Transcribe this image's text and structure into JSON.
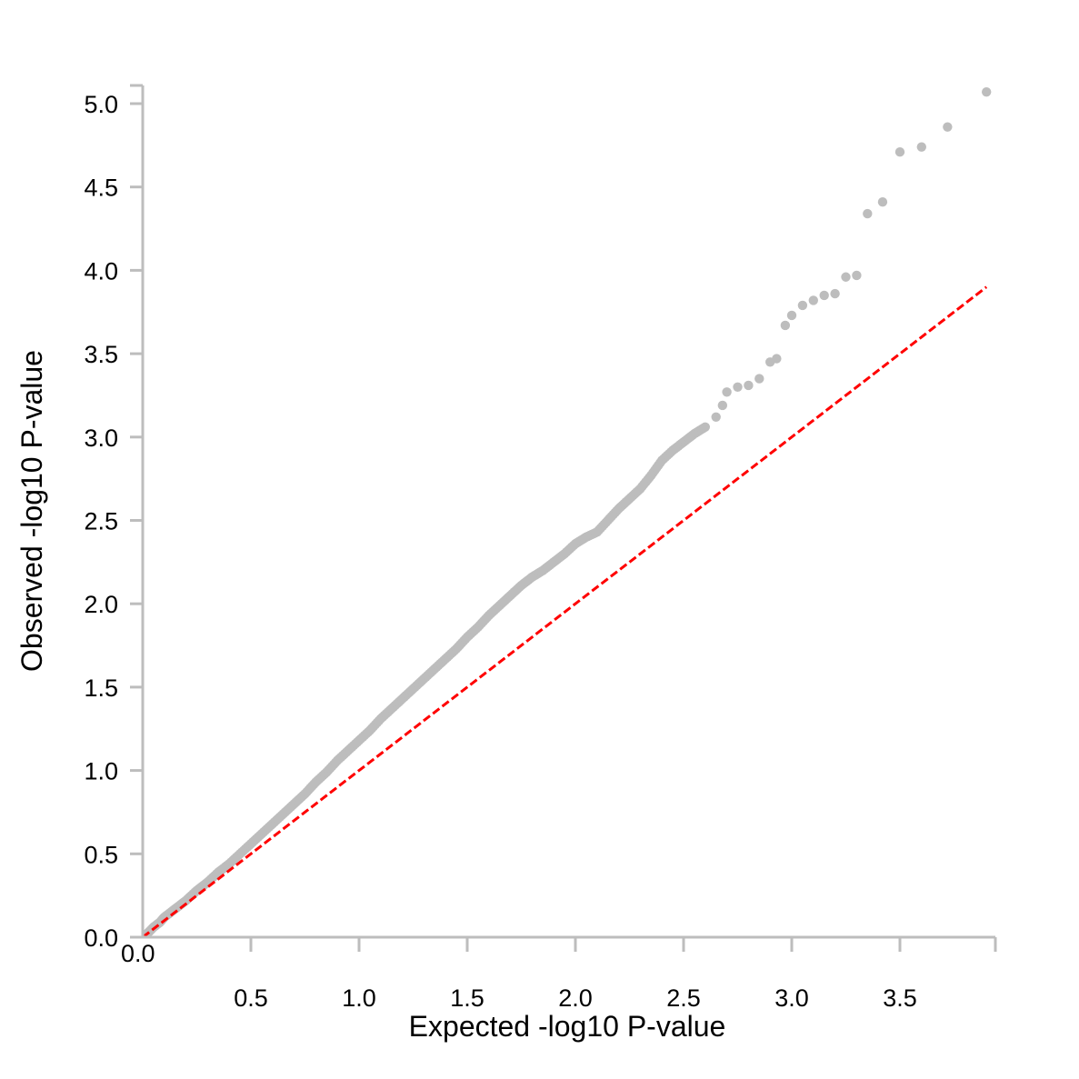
{
  "chart_data": {
    "type": "scatter",
    "xlabel": "Expected -log10 P-value",
    "ylabel": "Observed -log10 P-value",
    "xlim": [
      0,
      3.92
    ],
    "ylim": [
      0,
      5.1
    ],
    "x_ticks": [
      "0.0",
      "0.5",
      "1.0",
      "1.5",
      "2.0",
      "2.5",
      "3.0",
      "3.5"
    ],
    "y_ticks": [
      "0.0",
      "0.5",
      "1.0",
      "1.5",
      "2.0",
      "2.5",
      "3.0",
      "3.5",
      "4.0",
      "4.5",
      "5.0"
    ],
    "grid": false,
    "colors": {
      "points": "#bdbdbd",
      "reference_line": "#ff0000",
      "axes": "#bdbdbd"
    },
    "reference_line": {
      "from": [
        0,
        0
      ],
      "to": [
        3.9,
        3.9
      ],
      "style": "dashed"
    },
    "series": [
      {
        "points": [
          [
            0.02,
            0.02
          ],
          [
            0.05,
            0.06
          ],
          [
            0.08,
            0.09
          ],
          [
            0.1,
            0.12
          ],
          [
            0.15,
            0.17
          ],
          [
            0.2,
            0.22
          ],
          [
            0.25,
            0.28
          ],
          [
            0.3,
            0.33
          ],
          [
            0.35,
            0.39
          ],
          [
            0.4,
            0.44
          ],
          [
            0.45,
            0.5
          ],
          [
            0.5,
            0.56
          ],
          [
            0.55,
            0.62
          ],
          [
            0.6,
            0.68
          ],
          [
            0.65,
            0.74
          ],
          [
            0.7,
            0.8
          ],
          [
            0.75,
            0.86
          ],
          [
            0.8,
            0.93
          ],
          [
            0.85,
            0.99
          ],
          [
            0.9,
            1.06
          ],
          [
            0.95,
            1.12
          ],
          [
            1.0,
            1.18
          ],
          [
            1.05,
            1.24
          ],
          [
            1.1,
            1.31
          ],
          [
            1.15,
            1.37
          ],
          [
            1.2,
            1.43
          ],
          [
            1.25,
            1.49
          ],
          [
            1.3,
            1.55
          ],
          [
            1.35,
            1.61
          ],
          [
            1.4,
            1.67
          ],
          [
            1.45,
            1.73
          ],
          [
            1.5,
            1.8
          ],
          [
            1.55,
            1.86
          ],
          [
            1.6,
            1.93
          ],
          [
            1.65,
            1.99
          ],
          [
            1.7,
            2.05
          ],
          [
            1.75,
            2.11
          ],
          [
            1.8,
            2.16
          ],
          [
            1.85,
            2.2
          ],
          [
            1.9,
            2.25
          ],
          [
            1.95,
            2.3
          ],
          [
            2.0,
            2.36
          ],
          [
            2.05,
            2.4
          ],
          [
            2.1,
            2.43
          ],
          [
            2.15,
            2.5
          ],
          [
            2.2,
            2.57
          ],
          [
            2.25,
            2.63
          ],
          [
            2.3,
            2.69
          ],
          [
            2.35,
            2.77
          ],
          [
            2.4,
            2.86
          ],
          [
            2.45,
            2.92
          ],
          [
            2.5,
            2.97
          ],
          [
            2.55,
            3.02
          ],
          [
            2.6,
            3.06
          ],
          [
            2.65,
            3.12
          ],
          [
            2.68,
            3.19
          ],
          [
            2.7,
            3.27
          ],
          [
            2.75,
            3.3
          ],
          [
            2.8,
            3.31
          ],
          [
            2.85,
            3.35
          ],
          [
            2.9,
            3.45
          ],
          [
            2.93,
            3.47
          ],
          [
            2.97,
            3.67
          ],
          [
            3.0,
            3.73
          ],
          [
            3.05,
            3.79
          ],
          [
            3.1,
            3.82
          ],
          [
            3.15,
            3.85
          ],
          [
            3.2,
            3.86
          ],
          [
            3.25,
            3.96
          ],
          [
            3.3,
            3.97
          ],
          [
            3.35,
            4.34
          ],
          [
            3.42,
            4.41
          ],
          [
            3.5,
            4.71
          ],
          [
            3.6,
            4.74
          ],
          [
            3.72,
            4.86
          ],
          [
            3.9,
            5.07
          ]
        ]
      }
    ]
  }
}
